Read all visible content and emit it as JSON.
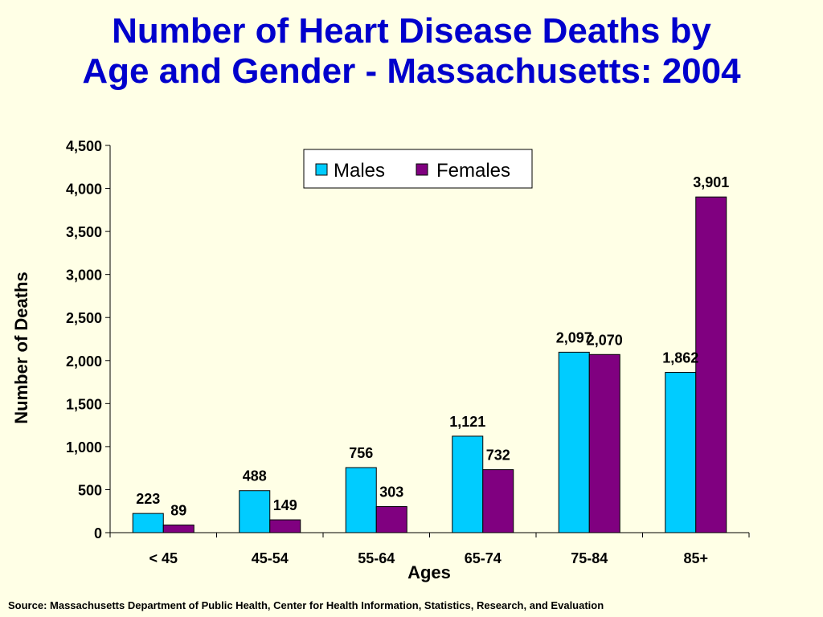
{
  "title_line1": "Number of Heart Disease Deaths by",
  "title_line2": "Age and Gender - Massachusetts: 2004",
  "source": "Source:  Massachusetts Department of Public Health, Center for Health Information, Statistics, Research, and Evaluation",
  "chart_data": {
    "type": "bar",
    "title": "Number of Heart Disease Deaths by Age and Gender - Massachusetts: 2004",
    "xlabel": "Ages",
    "ylabel": "Number of Deaths",
    "ylim": [
      0,
      4500
    ],
    "yticks": [
      0,
      500,
      1000,
      1500,
      2000,
      2500,
      3000,
      3500,
      4000,
      4500
    ],
    "ytick_labels": [
      "0",
      "500",
      "1,000",
      "1,500",
      "2,000",
      "2,500",
      "3,000",
      "3,500",
      "4,000",
      "4,500"
    ],
    "categories": [
      "< 45",
      "45-54",
      "55-64",
      "65-74",
      "75-84",
      "85+"
    ],
    "series": [
      {
        "name": "Males",
        "color": "#00ccff",
        "values": [
          223,
          488,
          756,
          1121,
          2097,
          1862
        ],
        "labels": [
          "223",
          "488",
          "756",
          "1,121",
          "2,097",
          "1,862"
        ]
      },
      {
        "name": "Females",
        "color": "#800080",
        "values": [
          89,
          149,
          303,
          732,
          2070,
          3901
        ],
        "labels": [
          "89",
          "149",
          "303",
          "732",
          "2,070",
          "3,901"
        ]
      }
    ],
    "legend": "top-center",
    "grid": false
  }
}
